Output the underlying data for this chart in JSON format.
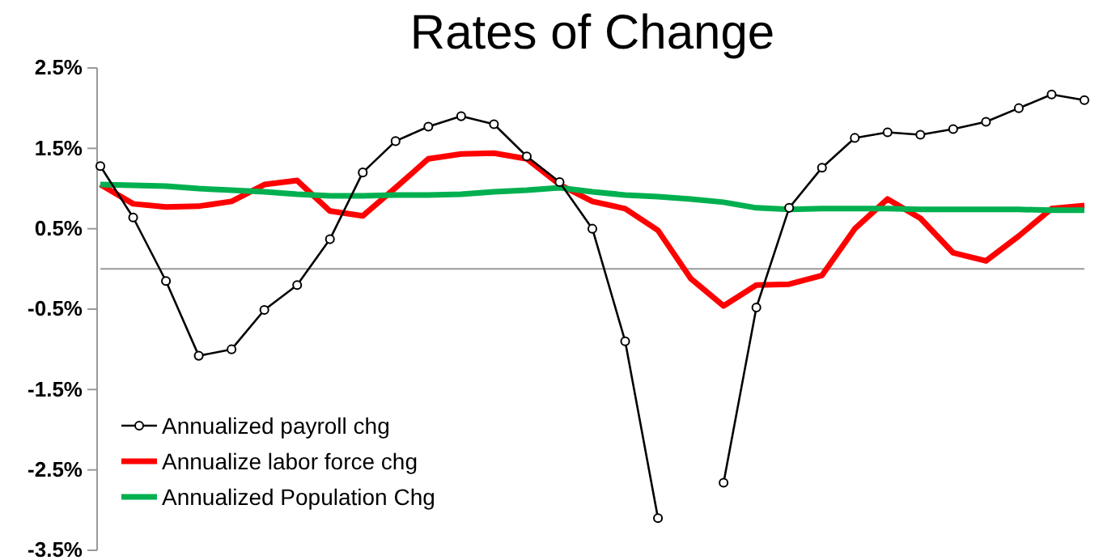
{
  "chart_data": {
    "type": "line",
    "title": "Rates of Change",
    "categories": [
      null,
      null,
      null,
      null,
      null,
      null,
      null,
      null,
      null,
      null,
      null,
      null,
      null,
      null,
      null,
      null,
      null,
      null,
      null,
      null,
      null,
      null,
      null,
      null,
      null,
      null,
      null,
      null,
      null,
      null,
      null
    ],
    "tick_labels": "y",
    "ylim": [
      -3.5,
      2.5
    ],
    "yticks": [
      {
        "value": 2.5,
        "label": "2.5%"
      },
      {
        "value": 1.5,
        "label": "1.5%"
      },
      {
        "value": 0.5,
        "label": "0.5%"
      },
      {
        "value": -0.5,
        "label": "-0.5%"
      },
      {
        "value": -1.5,
        "label": "-1.5%"
      },
      {
        "value": -2.5,
        "label": "-2.5%"
      },
      {
        "value": -3.5,
        "label": "-3.5%"
      }
    ],
    "legend": "bottom left",
    "series": [
      {
        "name": "Annualized payroll chg",
        "color": "#000000",
        "marker": "circle",
        "values": [
          1.28,
          0.64,
          -0.15,
          -1.08,
          -1.0,
          -0.51,
          -0.2,
          0.37,
          1.2,
          1.59,
          1.77,
          1.9,
          1.8,
          1.4,
          1.08,
          0.5,
          -0.9,
          -3.1,
          null,
          -2.66,
          -0.48,
          0.76,
          1.26,
          1.63,
          1.7,
          1.67,
          1.74,
          1.83,
          2.0,
          2.17,
          2.1
        ]
      },
      {
        "name": "Annualize labor force chg",
        "color": "#ff0000",
        "values": [
          1.05,
          0.81,
          0.77,
          0.78,
          0.84,
          1.05,
          1.1,
          0.72,
          0.66,
          1.01,
          1.37,
          1.43,
          1.44,
          1.37,
          1.05,
          0.84,
          0.75,
          0.48,
          -0.12,
          -0.46,
          -0.2,
          -0.19,
          -0.08,
          0.5,
          0.87,
          0.63,
          0.2,
          0.1,
          0.41,
          0.75,
          0.79
        ]
      },
      {
        "name": "Annualized Population Chg",
        "color": "#00b050",
        "values": [
          1.05,
          1.04,
          1.03,
          1.0,
          0.98,
          0.96,
          0.93,
          0.91,
          0.91,
          0.92,
          0.92,
          0.93,
          0.96,
          0.98,
          1.01,
          0.96,
          0.92,
          0.9,
          0.87,
          0.83,
          0.76,
          0.74,
          0.75,
          0.75,
          0.75,
          0.74,
          0.74,
          0.74,
          0.74,
          0.73,
          0.73
        ]
      }
    ]
  }
}
